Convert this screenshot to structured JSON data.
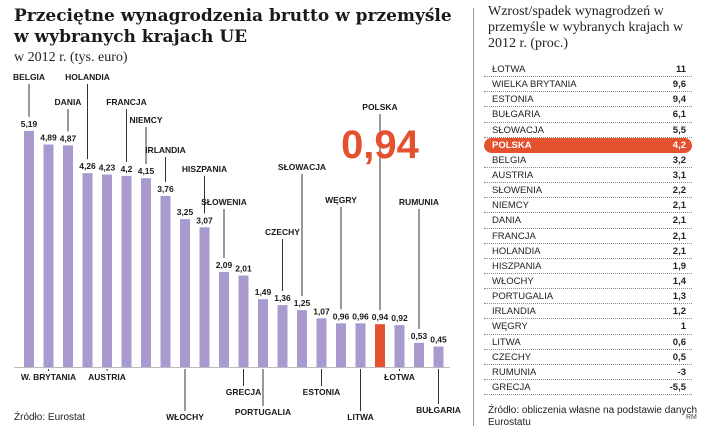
{
  "title": "Przeciętne wynagrodzenia brutto w przemyśle w wybranych krajach UE",
  "subtitle": "w 2012 r. (tys. euro)",
  "source_left": "Źródło: Eurostat",
  "highlight_value": "0,94",
  "colors": {
    "bar": "#a899cf",
    "highlight": "#e4512e",
    "text": "#1a1a1a"
  },
  "chart_data": {
    "type": "bar",
    "title": "Przeciętne wynagrodzenia brutto w przemyśle w wybranych krajach UE",
    "unit": "tys. euro",
    "categories": [
      "BELGIA",
      "W. BRYTANIA",
      "DANIA",
      "HOLANDIA",
      "AUSTRIA",
      "FRANCJA",
      "NIEMCY",
      "IRLANDIA",
      "WŁOCHY",
      "HISZPANIA",
      "SŁOWENIA",
      "GRECJA",
      "PORTUGALIA",
      "CZECHY",
      "SŁOWACJA",
      "ESTONIA",
      "WĘGRY",
      "LITWA",
      "POLSKA",
      "ŁOTWA",
      "RUMUNIA",
      "BUŁGARIA"
    ],
    "values": [
      5.19,
      4.89,
      4.87,
      4.26,
      4.23,
      4.2,
      4.15,
      3.76,
      3.25,
      3.07,
      2.09,
      2.01,
      1.49,
      1.36,
      1.25,
      1.07,
      0.96,
      0.96,
      0.94,
      0.92,
      0.53,
      0.45
    ],
    "value_labels": [
      "5,19",
      "4,89",
      "4,87",
      "4,26",
      "4,23",
      "4,2",
      "4,15",
      "3,76",
      "3,25",
      "3,07",
      "2,09",
      "2,01",
      "1,49",
      "1,36",
      "1,25",
      "1,07",
      "0,96",
      "0,96",
      "0,94",
      "0,92",
      "0,53",
      "0,45"
    ],
    "highlight": "POLSKA",
    "ylim": [
      0,
      5.5
    ],
    "grid": false
  },
  "right_table": {
    "title": "Wzrost/spadek wynagrodzeń w przemyśle w wybranych krajach w 2012 r. (proc.)",
    "rows": [
      {
        "country": "ŁOTWA",
        "value": "11"
      },
      {
        "country": "WIELKA BRYTANIA",
        "value": "9,6"
      },
      {
        "country": "ESTONIA",
        "value": "9,4"
      },
      {
        "country": "BUŁGARIA",
        "value": "6,1"
      },
      {
        "country": "SŁOWACJA",
        "value": "5,5"
      },
      {
        "country": "POLSKA",
        "value": "4,2",
        "highlight": true
      },
      {
        "country": "BELGIA",
        "value": "3,2"
      },
      {
        "country": "AUSTRIA",
        "value": "3,1"
      },
      {
        "country": "SŁOWENIA",
        "value": "2,2"
      },
      {
        "country": "NIEMCY",
        "value": "2,1"
      },
      {
        "country": "DANIA",
        "value": "2,1"
      },
      {
        "country": "FRANCJA",
        "value": "2,1"
      },
      {
        "country": "HOLANDIA",
        "value": "2,1"
      },
      {
        "country": "HISZPANIA",
        "value": "1,9"
      },
      {
        "country": "WŁOCHY",
        "value": "1,4"
      },
      {
        "country": "PORTUGALIA",
        "value": "1,3"
      },
      {
        "country": "IRLANDIA",
        "value": "1,2"
      },
      {
        "country": "WĘGRY",
        "value": "1"
      },
      {
        "country": "LITWA",
        "value": "0,6"
      },
      {
        "country": "CZECHY",
        "value": "0,5"
      },
      {
        "country": "RUMUNIA",
        "value": "-3"
      },
      {
        "country": "GRECJA",
        "value": "-5,5"
      }
    ],
    "source": "Źródło: obliczenia własne na podstawie danych Eurostatu",
    "credit": "RM"
  }
}
